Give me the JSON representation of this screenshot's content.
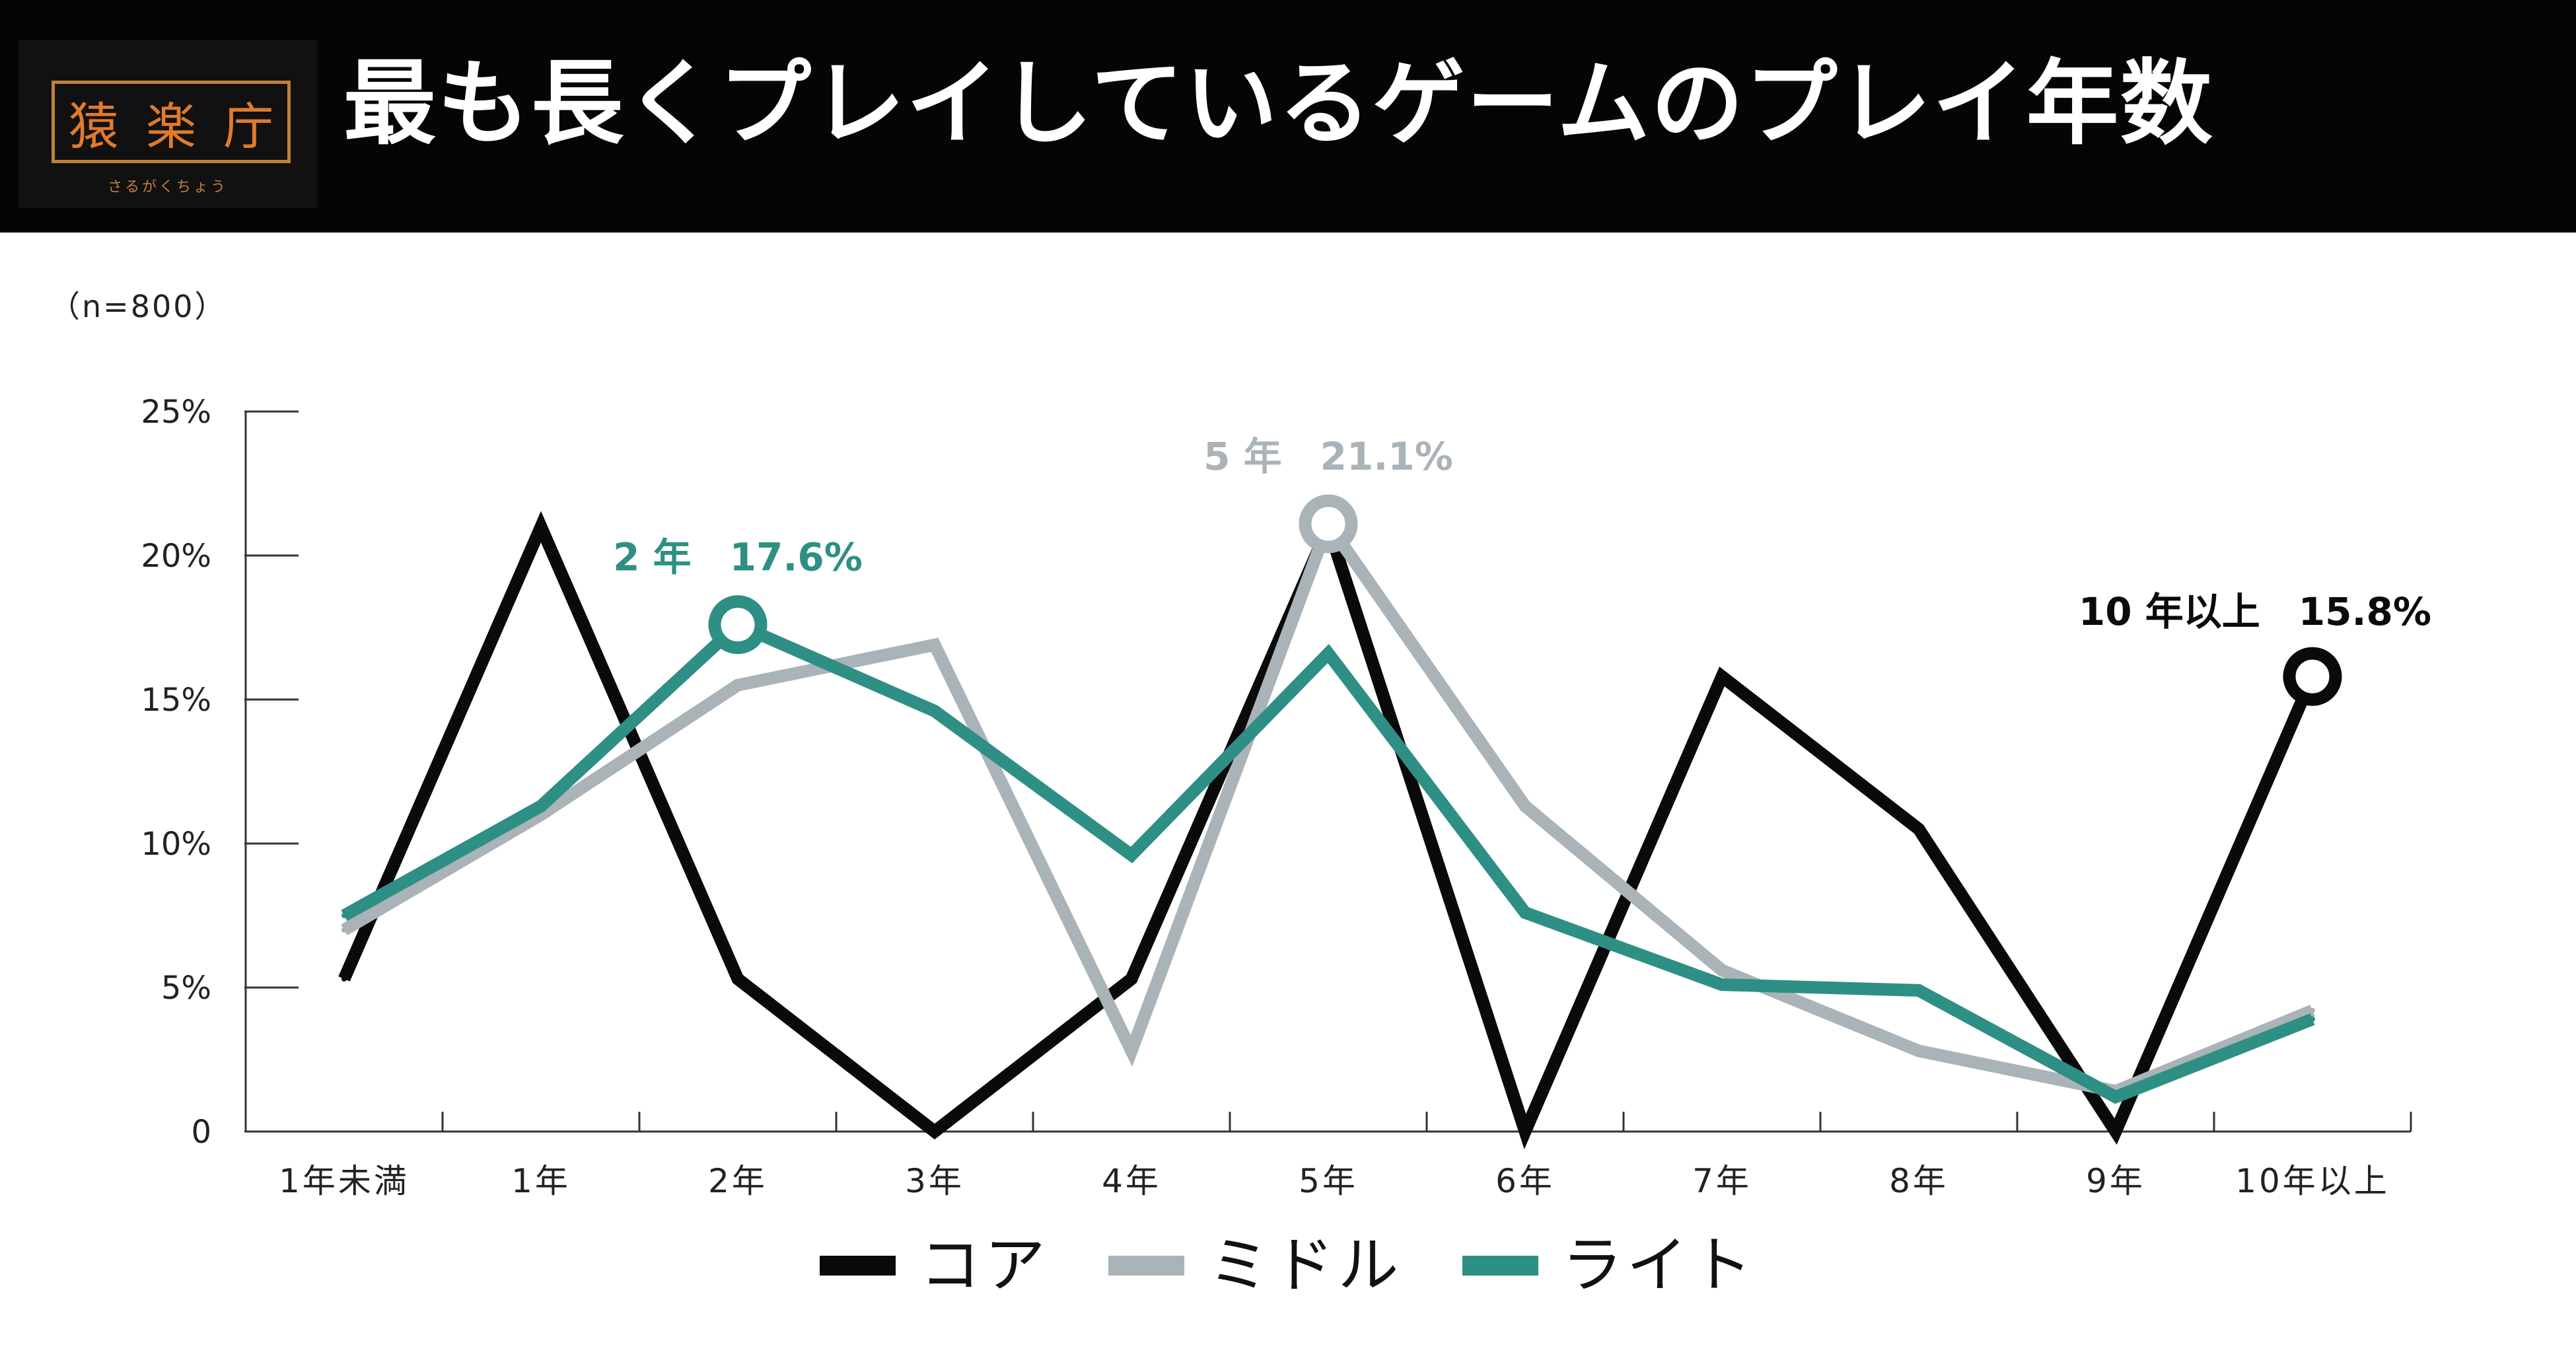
{
  "header": {
    "title": "最も長くプレイしているゲームのプレイ年数",
    "logo_chars": [
      "猿",
      "楽",
      "庁"
    ],
    "logo_sub": "さるがくちょう"
  },
  "note": "（n=800）",
  "chart_data": {
    "type": "line",
    "title": "最も長くプレイしているゲームのプレイ年数",
    "xlabel": "",
    "ylabel": "",
    "categories": [
      "1年未満",
      "1年",
      "2年",
      "3年",
      "4年",
      "5年",
      "6年",
      "7年",
      "8年",
      "9年",
      "10年以上"
    ],
    "ylim": [
      0,
      25
    ],
    "yticks": [
      0,
      5,
      10,
      15,
      20,
      25
    ],
    "ytick_labels": [
      "0",
      "5%",
      "10%",
      "15%",
      "20%",
      "25%"
    ],
    "grid": false,
    "legend_position": "bottom",
    "series": [
      {
        "name": "コア",
        "color": "#0a0a0a",
        "values": [
          5.3,
          21.0,
          5.3,
          0.0,
          5.3,
          21.0,
          0.0,
          15.8,
          10.5,
          0.0,
          15.8
        ]
      },
      {
        "name": "ミドル",
        "color": "#a9b3b8",
        "values": [
          7.0,
          11.0,
          15.5,
          16.9,
          2.8,
          21.1,
          11.3,
          5.6,
          2.8,
          1.4,
          4.2
        ]
      },
      {
        "name": "ライト",
        "color": "#2e8f84",
        "values": [
          7.5,
          11.3,
          17.6,
          14.6,
          9.6,
          16.6,
          7.6,
          5.1,
          4.9,
          1.2,
          3.9
        ]
      }
    ],
    "annotations": [
      {
        "series": "ライト",
        "category": "2年",
        "value": 17.6,
        "label": "2 年　17.6%",
        "color": "#2e8f84"
      },
      {
        "series": "ミドル",
        "category": "5年",
        "value": 21.1,
        "label": "5 年　21.1%",
        "color": "#a9b3b8"
      },
      {
        "series": "コア",
        "category": "10年以上",
        "value": 15.8,
        "label": "10 年以上　15.8%",
        "color": "#0a0a0a"
      }
    ]
  }
}
